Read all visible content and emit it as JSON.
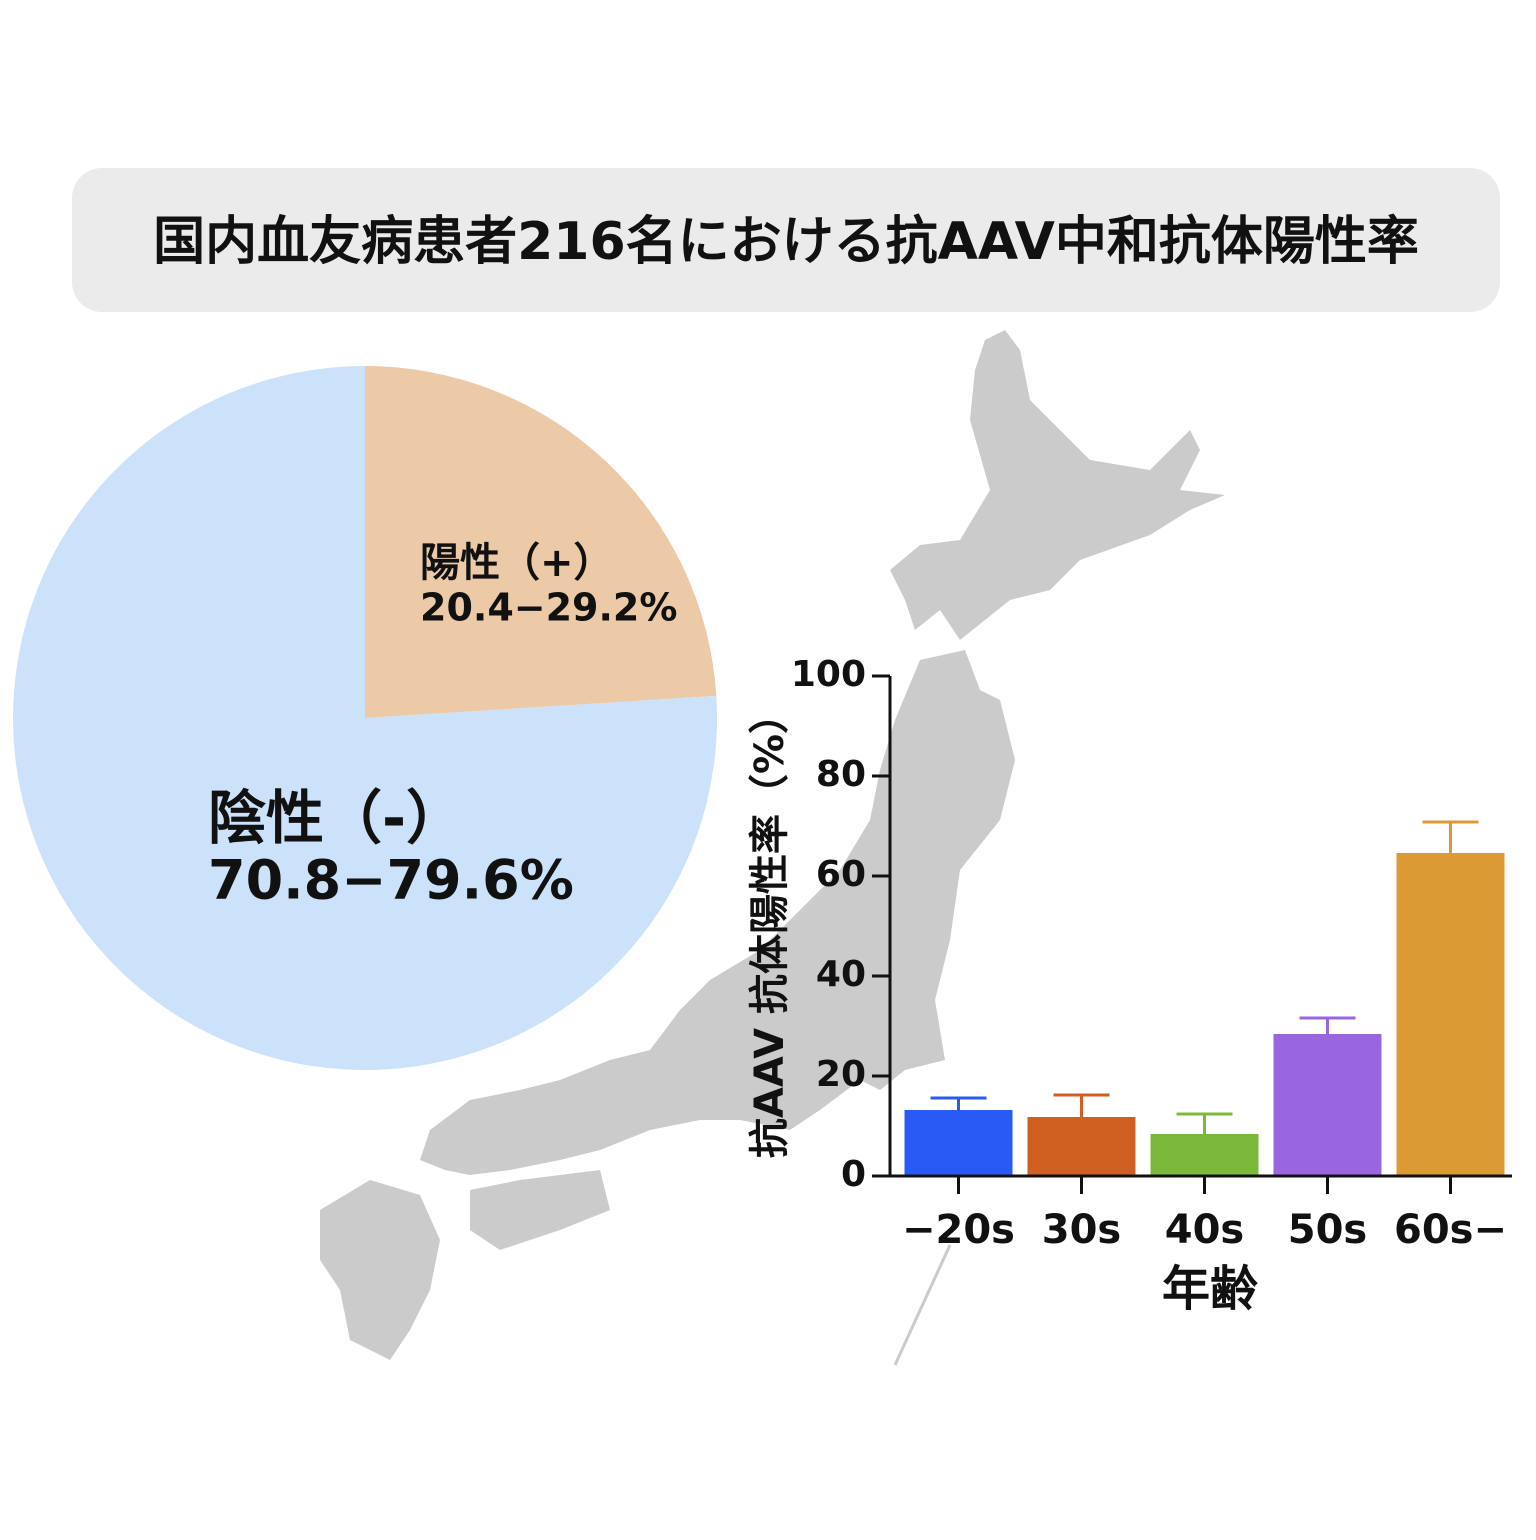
{
  "title": "国内血友病患者216名における抗AAV中和抗体陽性率",
  "chart_data": [
    {
      "type": "pie",
      "labels": [
        "陽性（+）",
        "陰性（-）"
      ],
      "range_labels": [
        "20.4−29.2%",
        "70.8−79.6%"
      ],
      "values": [
        24,
        76
      ],
      "colors": [
        "#ecc9a7",
        "#cce2fb"
      ]
    },
    {
      "type": "bar",
      "categories": [
        "−20s",
        "30s",
        "40s",
        "50s",
        "60s−"
      ],
      "values": [
        13.2,
        11.8,
        8.4,
        28.4,
        64.6
      ],
      "errors": [
        2.4,
        4.4,
        4.0,
        3.2,
        6.2
      ],
      "colors": [
        "#2a5af5",
        "#d05f22",
        "#7cb83a",
        "#9966e0",
        "#dc9a35"
      ],
      "ylabel": "抗AAV 抗体陽性率（%）",
      "xlabel": "年齢",
      "ylim": [
        0,
        100
      ],
      "yticks": [
        0,
        20,
        40,
        60,
        80,
        100
      ]
    }
  ]
}
